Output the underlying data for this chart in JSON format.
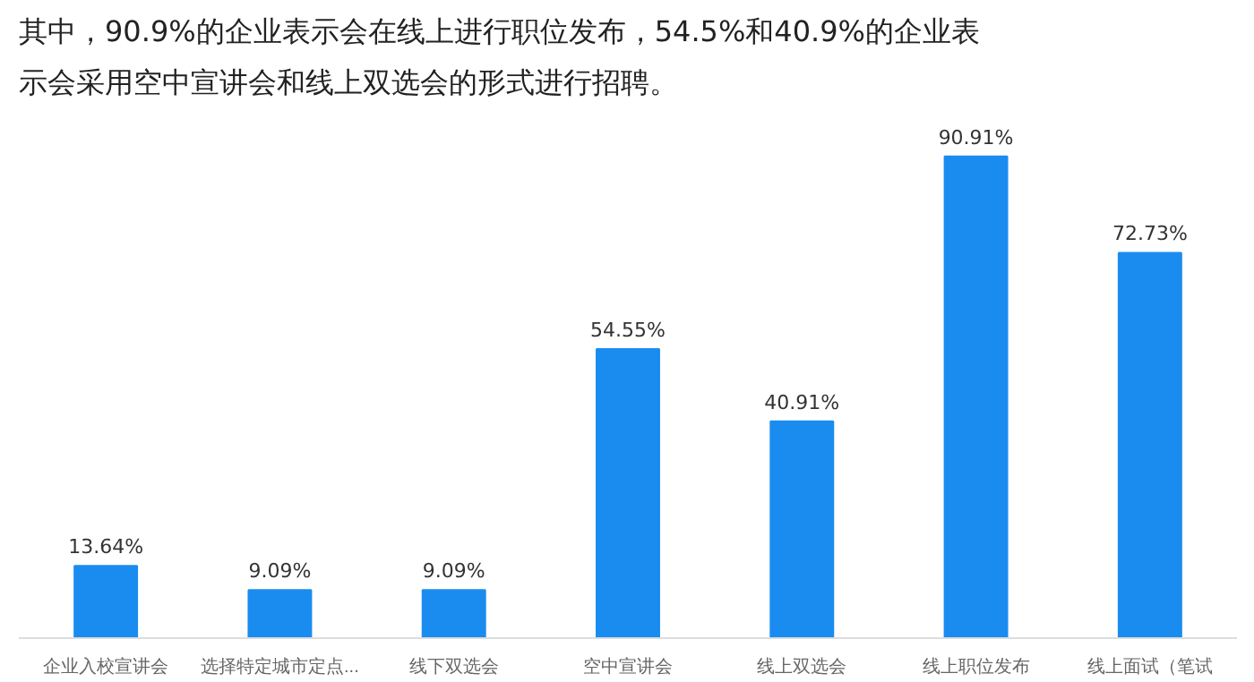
{
  "chart_data": {
    "type": "bar",
    "title": "其中，90.9%的企业表示会在线上进行职位发布，54.5%和40.9%的企业表示会采用空中宣讲会和线上双选会的形式进行招聘。",
    "categories": [
      "企业入校宣讲会",
      "选择特定城市定点...",
      "线下双选会",
      "空中宣讲会",
      "线上双选会",
      "线上职位发布",
      "线上面试（笔试"
    ],
    "values": [
      13.64,
      9.09,
      9.09,
      54.55,
      40.91,
      90.91,
      72.73
    ],
    "value_labels": [
      "13.64%",
      "9.09%",
      "9.09%",
      "54.55%",
      "40.91%",
      "90.91%",
      "72.73%"
    ],
    "color": "#1a8cf0",
    "grid": false
  }
}
